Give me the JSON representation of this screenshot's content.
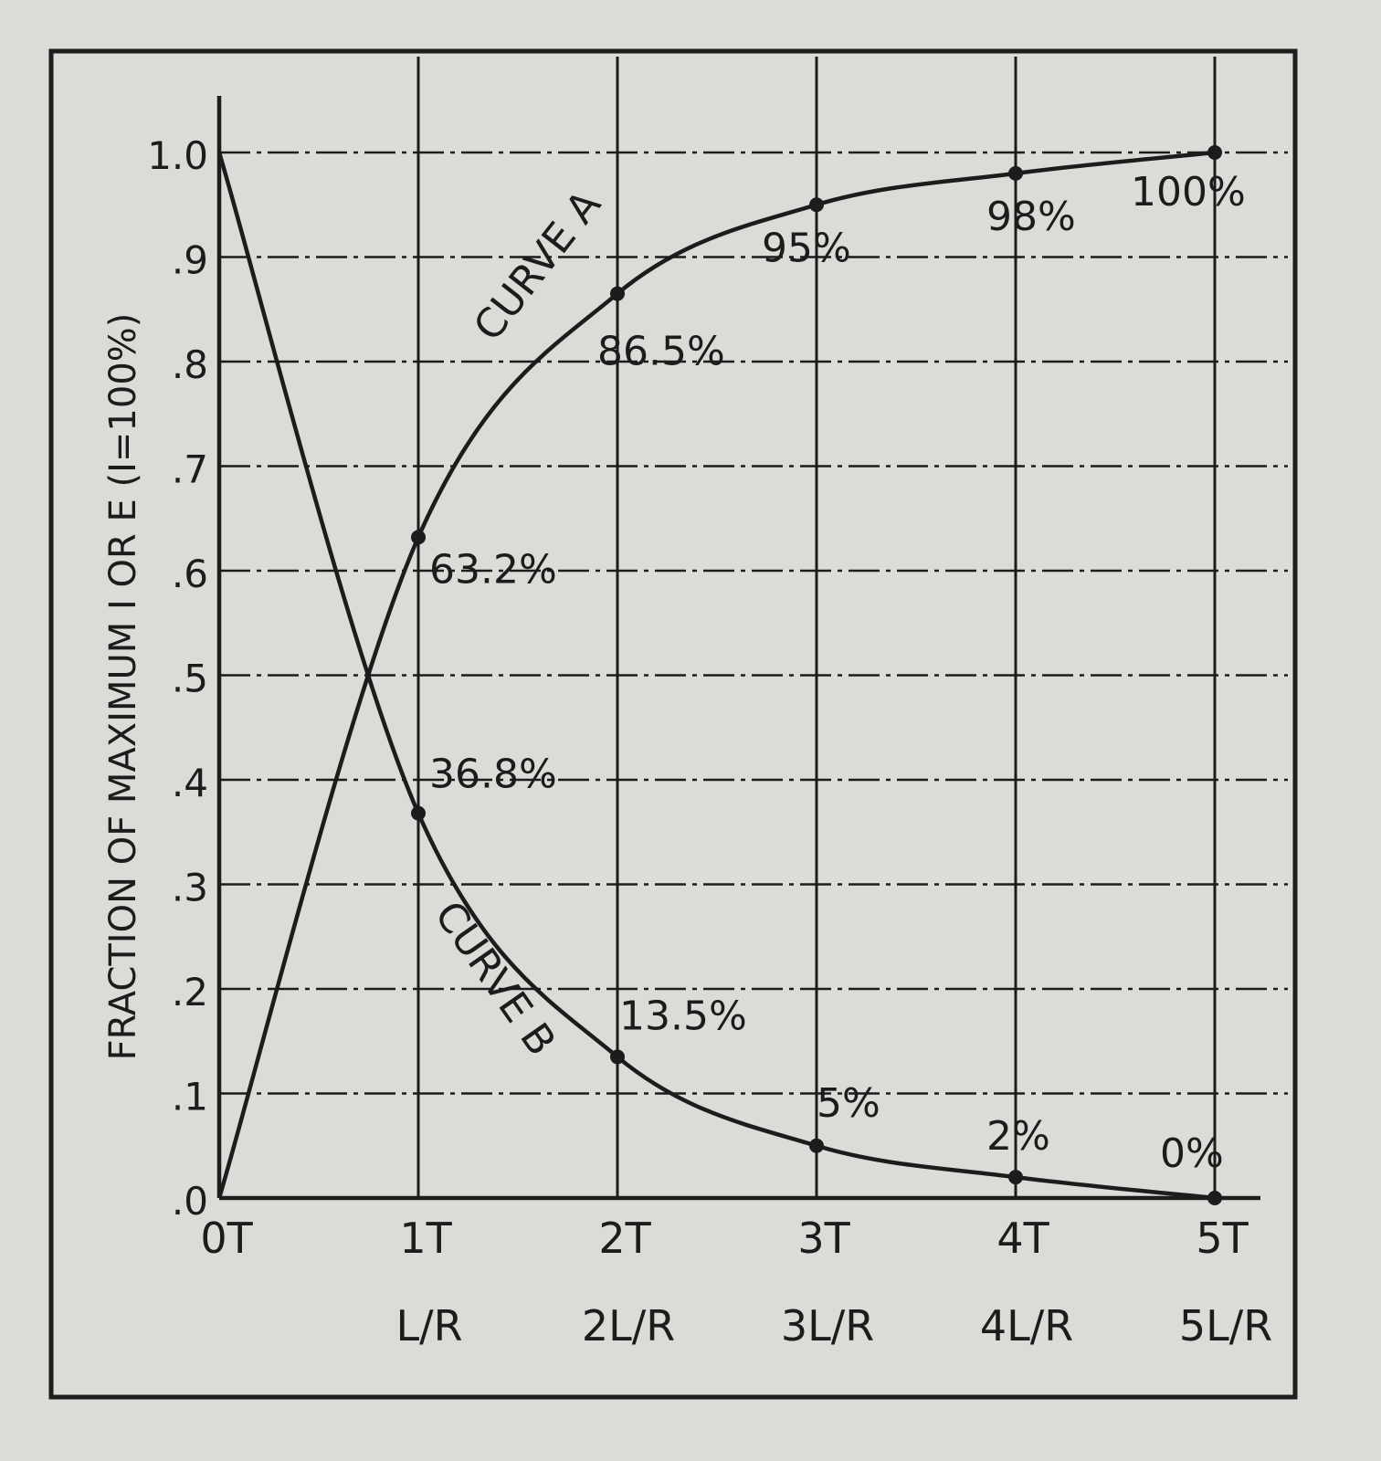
{
  "chart_data": {
    "type": "line",
    "ylabel": "FRACTION OF MAXIMUM  I OR E   (I=100%)",
    "x_ticks": [
      "0T",
      "1T",
      "2T",
      "3T",
      "4T",
      "5T"
    ],
    "x_ticks_secondary": [
      "",
      "L/R",
      "2L/R",
      "3L/R",
      "4L/R",
      "5L/R"
    ],
    "y_ticks": [
      ".0",
      ".1",
      ".2",
      ".3",
      ".4",
      ".5",
      ".6",
      ".7",
      ".8",
      ".9",
      "1.0"
    ],
    "xlim": [
      0,
      5
    ],
    "ylim": [
      0,
      1.0
    ],
    "grid": true,
    "series": [
      {
        "name": "CURVE A",
        "x": [
          0,
          1,
          2,
          3,
          4,
          5
        ],
        "values": [
          0,
          0.632,
          0.865,
          0.95,
          0.98,
          1.0
        ],
        "point_labels": [
          "",
          "63.2%",
          "86.5%",
          "95%",
          "98%",
          "100%"
        ]
      },
      {
        "name": "CURVE B",
        "x": [
          0,
          1,
          2,
          3,
          4,
          5
        ],
        "values": [
          1.0,
          0.368,
          0.135,
          0.05,
          0.02,
          0
        ],
        "point_labels": [
          "",
          "36.8%",
          "13.5%",
          "5%",
          "2%",
          "0%"
        ]
      }
    ]
  },
  "colors": {
    "ink": "#1c1c1c",
    "paper": "#d9dcd7"
  }
}
